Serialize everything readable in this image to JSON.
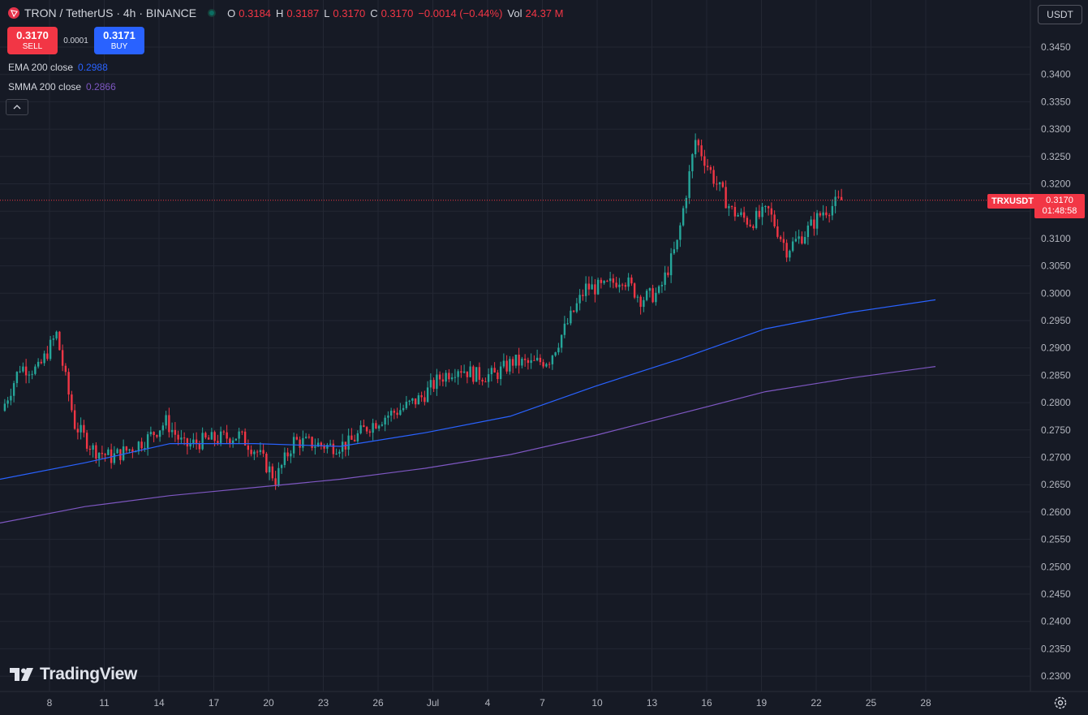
{
  "header": {
    "symbol": "TRON / TetherUS · 4h · BINANCE",
    "ohlc": {
      "o_label": "O",
      "o": "0.3184",
      "h_label": "H",
      "h": "0.3187",
      "l_label": "L",
      "l": "0.3170",
      "c_label": "C",
      "c": "0.3170",
      "change": "−0.0014 (−0.44%)",
      "vol_label": "Vol",
      "vol": "24.37 M"
    }
  },
  "trade": {
    "sell_price": "0.3170",
    "sell_label": "SELL",
    "spread": "0.0001",
    "buy_price": "0.3171",
    "buy_label": "BUY"
  },
  "indicators": [
    {
      "name": "EMA 200 close",
      "value": "0.2988",
      "color": "#2962ff"
    },
    {
      "name": "SMMA 200 close",
      "value": "0.2866",
      "color": "#7e57c2"
    }
  ],
  "currency": "USDT",
  "last_price": {
    "ticker": "TRXUSDT",
    "price": "0.3170",
    "countdown": "01:48:58"
  },
  "brand": "TradingView",
  "colors": {
    "background": "#161a25",
    "up": "#26a69a",
    "down": "#f23645",
    "grid": "#232733",
    "axis_text": "#b2b5be"
  },
  "chart_data": {
    "type": "candlestick",
    "title": "TRON / TetherUS · 4h · BINANCE",
    "x_ticks": [
      "8",
      "11",
      "14",
      "17",
      "20",
      "23",
      "26",
      "Jul",
      "4",
      "7",
      "10",
      "13",
      "16",
      "19",
      "22",
      "25",
      "28"
    ],
    "y_ticks": [
      "0.3450",
      "0.3400",
      "0.3350",
      "0.3300",
      "0.3250",
      "0.3200",
      "0.3150",
      "0.3100",
      "0.3050",
      "0.3000",
      "0.2950",
      "0.2900",
      "0.2850",
      "0.2800",
      "0.2750",
      "0.2700",
      "0.2650",
      "0.2600",
      "0.2550",
      "0.2500",
      "0.2450",
      "0.2400",
      "0.2350",
      "0.2300"
    ],
    "ylim": [
      0.2275,
      0.3475
    ],
    "close_anchors": [
      [
        "8",
        0.2785
      ],
      [
        "9",
        0.2865
      ],
      [
        "10",
        0.286
      ],
      [
        "11",
        0.2925
      ],
      [
        "12",
        0.276
      ],
      [
        "13",
        0.2715
      ],
      [
        "14",
        0.27
      ],
      [
        "15",
        0.2715
      ],
      [
        "16",
        0.2735
      ],
      [
        "17",
        0.2765
      ],
      [
        "18",
        0.272
      ],
      [
        "19",
        0.273
      ],
      [
        "20",
        0.2735
      ],
      [
        "21",
        0.274
      ],
      [
        "22",
        0.271
      ],
      [
        "23",
        0.266
      ],
      [
        "24",
        0.273
      ],
      [
        "25",
        0.2725
      ],
      [
        "26",
        0.272
      ],
      [
        "27",
        0.2725
      ],
      [
        "28",
        0.2755
      ],
      [
        "29",
        0.2775
      ],
      [
        "30",
        0.279
      ],
      [
        "Jul",
        0.281
      ],
      [
        "2",
        0.2845
      ],
      [
        "3",
        0.2865
      ],
      [
        "4",
        0.285
      ],
      [
        "5",
        0.285
      ],
      [
        "6",
        0.2875
      ],
      [
        "7",
        0.287
      ],
      [
        "8",
        0.288
      ],
      [
        "9",
        0.2945
      ],
      [
        "10",
        0.301
      ],
      [
        "11",
        0.301
      ],
      [
        "12",
        0.303
      ],
      [
        "13",
        0.299
      ],
      [
        "14",
        0.3
      ],
      [
        "15",
        0.309
      ],
      [
        "16",
        0.328
      ],
      [
        "17",
        0.321
      ],
      [
        "18",
        0.315
      ],
      [
        "19",
        0.313
      ],
      [
        "20",
        0.315
      ],
      [
        "21",
        0.308
      ],
      [
        "22",
        0.311
      ],
      [
        "23",
        0.315
      ],
      [
        "24",
        0.317
      ]
    ],
    "series": [
      {
        "name": "EMA 200 close",
        "color": "#2962ff",
        "points": [
          [
            "7",
            0.266
          ],
          [
            "10",
            0.269
          ],
          [
            "13",
            0.2725
          ],
          [
            "20",
            0.2725
          ],
          [
            "26",
            0.272
          ],
          [
            "Jul",
            0.2745
          ],
          [
            "7",
            0.2775
          ],
          [
            "13",
            0.283
          ],
          [
            "16",
            0.288
          ],
          [
            "19",
            0.2935
          ],
          [
            "22",
            0.2965
          ],
          [
            "25",
            0.2988
          ]
        ]
      },
      {
        "name": "SMMA 200 close",
        "color": "#7e57c2",
        "points": [
          [
            "7",
            0.258
          ],
          [
            "10",
            0.261
          ],
          [
            "13",
            0.263
          ],
          [
            "20",
            0.2645
          ],
          [
            "26",
            0.266
          ],
          [
            "Jul",
            0.268
          ],
          [
            "7",
            0.2705
          ],
          [
            "13",
            0.274
          ],
          [
            "16",
            0.278
          ],
          [
            "19",
            0.282
          ],
          [
            "22",
            0.2845
          ],
          [
            "25",
            0.2866
          ]
        ]
      }
    ],
    "last_price": 0.317,
    "grid": true
  }
}
